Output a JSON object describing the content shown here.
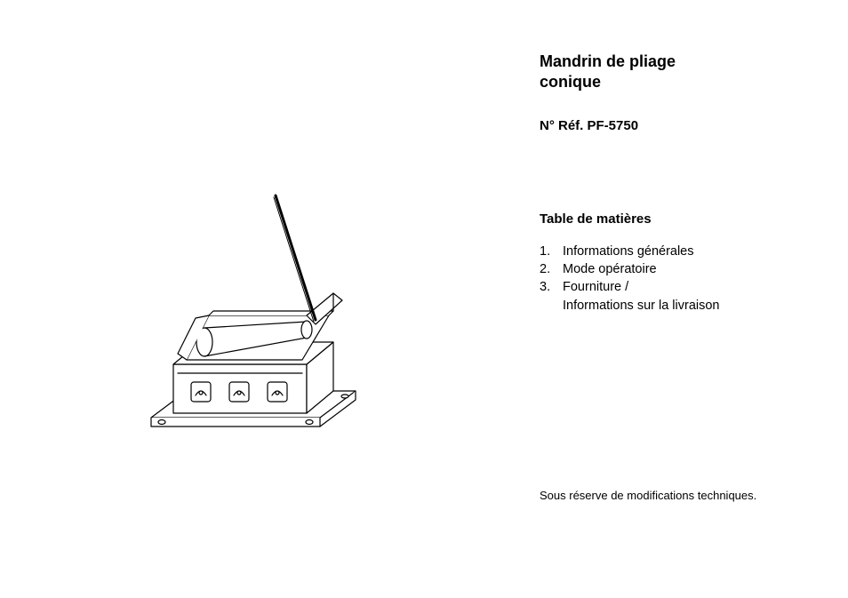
{
  "title_line1": "Mandrin de pliage",
  "title_line2": "conique",
  "ref": "N° Réf. PF-5750",
  "toc_heading": "Table de matières",
  "toc": [
    {
      "num": "1.",
      "text": "Informations générales"
    },
    {
      "num": "2.",
      "text": "Mode opératoire"
    },
    {
      "num": "3.",
      "text": "Fourniture /\nInformations sur la livraison"
    }
  ],
  "footnote": "Sous réserve de modifications techniques.",
  "illustration": {
    "type": "technical-line-drawing",
    "stroke": "#000000",
    "fill": "#ffffff",
    "stroke_width": 1.2
  }
}
